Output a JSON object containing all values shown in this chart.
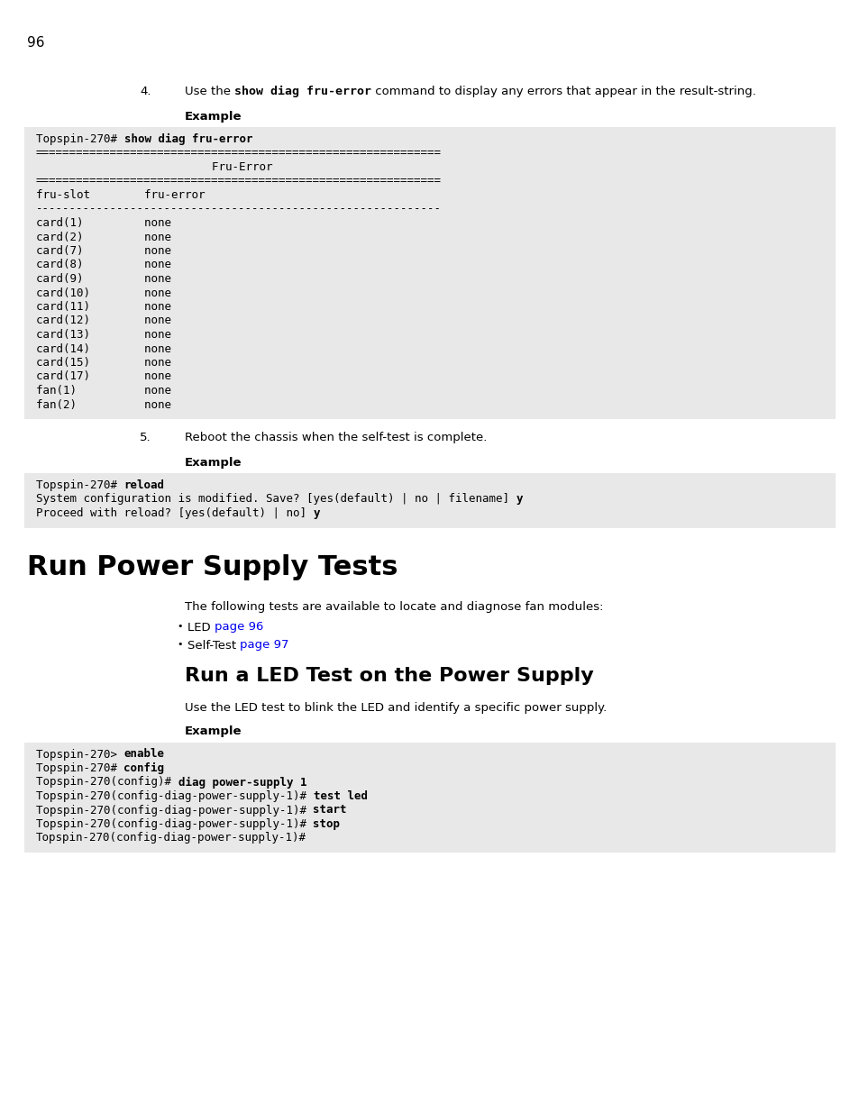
{
  "page_number": "96",
  "bg_color": "#ffffff",
  "code_bg_color": "#e8e8e8",
  "link_color": "#0000ee",
  "step4_label": "4.",
  "step4_parts": [
    {
      "t": "Use the ",
      "bold": false,
      "mono": false
    },
    {
      "t": "show diag fru-error",
      "bold": true,
      "mono": true
    },
    {
      "t": " command to display any errors that appear in the result-string.",
      "bold": false,
      "mono": false
    }
  ],
  "example_label": "Example",
  "code1_lines": [
    [
      {
        "t": "Topspin-270# ",
        "bold": false
      },
      {
        "t": "show diag fru-error",
        "bold": true
      }
    ],
    [
      {
        "t": "============================================================",
        "bold": false
      }
    ],
    [
      {
        "t": "                          Fru-Error",
        "bold": false
      }
    ],
    [
      {
        "t": "============================================================",
        "bold": false
      }
    ],
    [
      {
        "t": "fru-slot        fru-error",
        "bold": false
      }
    ],
    [
      {
        "t": "------------------------------------------------------------",
        "bold": false
      }
    ],
    [
      {
        "t": "card(1)         none",
        "bold": false
      }
    ],
    [
      {
        "t": "card(2)         none",
        "bold": false
      }
    ],
    [
      {
        "t": "card(7)         none",
        "bold": false
      }
    ],
    [
      {
        "t": "card(8)         none",
        "bold": false
      }
    ],
    [
      {
        "t": "card(9)         none",
        "bold": false
      }
    ],
    [
      {
        "t": "card(10)        none",
        "bold": false
      }
    ],
    [
      {
        "t": "card(11)        none",
        "bold": false
      }
    ],
    [
      {
        "t": "card(12)        none",
        "bold": false
      }
    ],
    [
      {
        "t": "card(13)        none",
        "bold": false
      }
    ],
    [
      {
        "t": "card(14)        none",
        "bold": false
      }
    ],
    [
      {
        "t": "card(15)        none",
        "bold": false
      }
    ],
    [
      {
        "t": "card(17)        none",
        "bold": false
      }
    ],
    [
      {
        "t": "fan(1)          none",
        "bold": false
      }
    ],
    [
      {
        "t": "fan(2)          none",
        "bold": false
      }
    ]
  ],
  "step5_label": "5.",
  "step5_text": "Reboot the chassis when the self-test is complete.",
  "code2_lines": [
    [
      {
        "t": "Topspin-270# ",
        "bold": false
      },
      {
        "t": "reload",
        "bold": true
      }
    ],
    [
      {
        "t": "System configuration is modified. Save? [yes(default) | no | filename] ",
        "bold": false
      },
      {
        "t": "y",
        "bold": true
      }
    ],
    [
      {
        "t": "Proceed with reload? [yes(default) | no] ",
        "bold": false
      },
      {
        "t": "y",
        "bold": true
      }
    ]
  ],
  "section_title": "Run Power Supply Tests",
  "section_intro": "The following tests are available to locate and diagnose fan modules:",
  "bullet1_text": "LED ",
  "bullet1_link": "page 96",
  "bullet2_text": "Self-Test ",
  "bullet2_link": "page 97",
  "subsection_title": "Run a LED Test on the Power Supply",
  "subsection_intro": "Use the LED test to blink the LED and identify a specific power supply.",
  "code3_lines": [
    [
      {
        "t": "Topspin-270> ",
        "bold": false
      },
      {
        "t": "enable",
        "bold": true
      }
    ],
    [
      {
        "t": "Topspin-270# ",
        "bold": false
      },
      {
        "t": "config",
        "bold": true
      }
    ],
    [
      {
        "t": "Topspin-270(config)# ",
        "bold": false
      },
      {
        "t": "diag power-supply 1",
        "bold": true
      }
    ],
    [
      {
        "t": "Topspin-270(config-diag-power-supply-1)# ",
        "bold": false
      },
      {
        "t": "test led",
        "bold": true
      }
    ],
    [
      {
        "t": "Topspin-270(config-diag-power-supply-1)# ",
        "bold": false
      },
      {
        "t": "start",
        "bold": true
      }
    ],
    [
      {
        "t": "Topspin-270(config-diag-power-supply-1)# ",
        "bold": false
      },
      {
        "t": "stop",
        "bold": true
      }
    ],
    [
      {
        "t": "Topspin-270(config-diag-power-supply-1)#",
        "bold": false
      }
    ]
  ]
}
